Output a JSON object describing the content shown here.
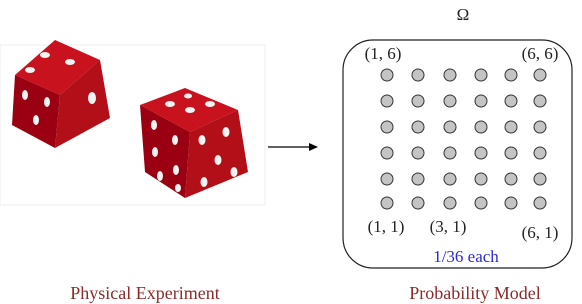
{
  "omega": "Ω",
  "corner_labels": {
    "top_left": "(1, 6)",
    "top_right": "(6, 6)",
    "bottom_left": "(1, 1)",
    "bottom_middle": "(3, 1)",
    "bottom_right": "(6, 1)"
  },
  "note": "1/36 each",
  "captions": {
    "left": "Physical Experiment",
    "right": "Probability Model"
  }
}
